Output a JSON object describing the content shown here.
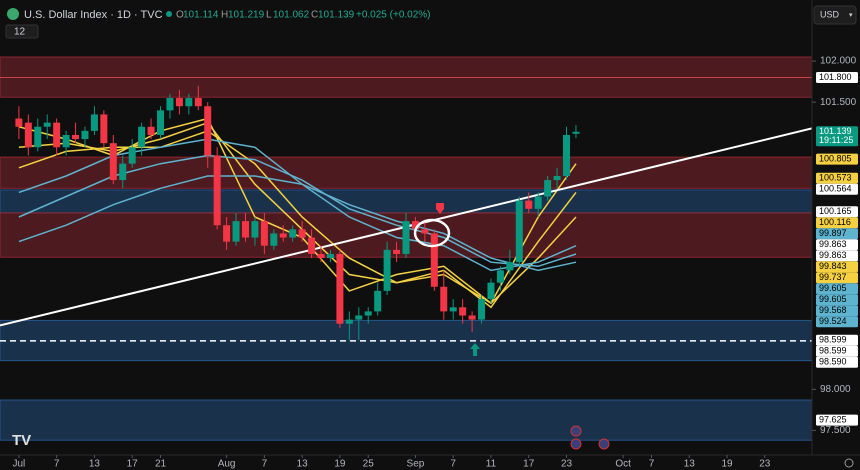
{
  "header": {
    "title": "U.S. Dollar Index · 1D · TVC",
    "ohlc": [
      {
        "label": "O",
        "value": "101.114"
      },
      {
        "label": "H",
        "value": "101.219"
      },
      {
        "label": "L",
        "value": "101.062"
      },
      {
        "label": "C",
        "value": "101.139"
      }
    ],
    "change": "+0.025 (+0.02%)",
    "currency": "USD",
    "indicators": "12"
  },
  "chart_data": {
    "type": "candlestick",
    "x": [
      0,
      1,
      2,
      3,
      4,
      5,
      6,
      7,
      8,
      9,
      10,
      11,
      12,
      13,
      14,
      15,
      16,
      17,
      18,
      19,
      20,
      21,
      22,
      23,
      24,
      25,
      26,
      27,
      28,
      29,
      30,
      31,
      32,
      33,
      34,
      35,
      36,
      37,
      38,
      39,
      40,
      41,
      42,
      43,
      44,
      45,
      46,
      47,
      48,
      49,
      50,
      51,
      52,
      53,
      54,
      55,
      56,
      57,
      58,
      59
    ],
    "open": [
      101.3,
      101.25,
      100.95,
      101.2,
      101.25,
      100.95,
      101.1,
      101.05,
      101.15,
      101.35,
      101.0,
      100.55,
      100.75,
      100.95,
      101.2,
      101.1,
      101.4,
      101.55,
      101.45,
      101.55,
      101.45,
      100.85,
      100.0,
      99.8,
      100.05,
      99.85,
      100.05,
      99.75,
      99.9,
      99.85,
      99.95,
      99.85,
      99.65,
      99.6,
      99.65,
      98.8,
      98.85,
      98.9,
      98.95,
      99.2,
      99.7,
      99.65,
      100.05,
      99.95,
      99.9,
      99.25,
      98.95,
      99.0,
      98.9,
      98.85,
      99.1,
      99.3,
      99.45,
      99.55,
      100.3,
      100.2,
      100.35,
      100.55,
      100.6,
      101.114
    ],
    "high": [
      101.45,
      101.35,
      101.3,
      101.35,
      101.3,
      101.15,
      101.25,
      101.2,
      101.45,
      101.4,
      101.1,
      100.85,
      101.05,
      101.25,
      101.3,
      101.45,
      101.6,
      101.65,
      101.6,
      101.7,
      101.5,
      100.95,
      100.1,
      100.15,
      100.15,
      100.1,
      100.15,
      99.95,
      100.0,
      100.0,
      100.05,
      99.95,
      99.75,
      99.7,
      99.7,
      98.95,
      99.0,
      99.0,
      99.3,
      99.8,
      99.8,
      100.15,
      100.1,
      100.05,
      99.95,
      99.45,
      99.1,
      99.1,
      98.95,
      99.15,
      99.35,
      99.5,
      99.7,
      100.35,
      100.4,
      100.4,
      100.6,
      100.7,
      101.2,
      101.219
    ],
    "low": [
      101.05,
      100.85,
      100.9,
      101.05,
      100.85,
      100.85,
      101.0,
      100.95,
      101.1,
      100.95,
      100.5,
      100.45,
      100.7,
      100.85,
      101.05,
      101.05,
      101.3,
      101.35,
      101.35,
      101.4,
      100.7,
      99.95,
      99.7,
      99.75,
      99.8,
      99.75,
      99.65,
      99.7,
      99.8,
      99.8,
      99.8,
      99.6,
      99.55,
      99.55,
      98.75,
      98.6,
      98.6,
      98.8,
      98.9,
      99.15,
      99.55,
      99.6,
      99.85,
      99.8,
      99.2,
      98.85,
      98.85,
      98.8,
      98.7,
      98.8,
      99.05,
      99.2,
      99.4,
      99.5,
      100.15,
      100.1,
      100.3,
      100.45,
      100.55,
      101.062
    ],
    "close": [
      101.2,
      100.95,
      101.2,
      101.25,
      100.95,
      101.1,
      101.05,
      101.15,
      101.35,
      101.0,
      100.55,
      100.75,
      100.95,
      101.2,
      101.1,
      101.4,
      101.55,
      101.45,
      101.55,
      101.45,
      100.85,
      100.0,
      99.8,
      100.05,
      99.85,
      100.05,
      99.75,
      99.9,
      99.85,
      99.95,
      99.85,
      99.65,
      99.6,
      99.65,
      98.8,
      98.85,
      98.9,
      98.95,
      99.2,
      99.7,
      99.65,
      100.05,
      99.95,
      99.9,
      99.25,
      98.95,
      99.0,
      98.9,
      98.85,
      99.1,
      99.3,
      99.45,
      99.55,
      100.3,
      100.2,
      100.35,
      100.55,
      100.6,
      101.1,
      101.139
    ],
    "up_color": "#089981",
    "down_color": "#f23645",
    "ma": [
      {
        "color": "#f5d142",
        "x": [
          0,
          5,
          10,
          15,
          20,
          25,
          30,
          35,
          40,
          45,
          50,
          55,
          59
        ],
        "values": [
          101.2,
          101.05,
          100.85,
          101.15,
          101.3,
          100.1,
          99.85,
          99.2,
          99.4,
          99.5,
          99.05,
          100.1,
          100.75
        ]
      },
      {
        "color": "#f5d142",
        "x": [
          0,
          5,
          10,
          15,
          20,
          25,
          30,
          35,
          40,
          45,
          50,
          55,
          59
        ],
        "values": [
          100.95,
          101.0,
          100.9,
          101.05,
          101.25,
          100.5,
          99.95,
          99.4,
          99.3,
          99.45,
          99.0,
          99.8,
          100.4
        ]
      },
      {
        "color": "#f5d142",
        "x": [
          0,
          5,
          10,
          15,
          20,
          25,
          30,
          35,
          40,
          45,
          50,
          55,
          59
        ],
        "values": [
          100.7,
          100.9,
          100.95,
          100.95,
          101.15,
          100.75,
          100.1,
          99.6,
          99.3,
          99.4,
          99.05,
          99.6,
          100.1
        ]
      },
      {
        "color": "#5eb3cf",
        "x": [
          0,
          5,
          10,
          15,
          20,
          25,
          30,
          35,
          40,
          45,
          50,
          55,
          59
        ],
        "values": [
          100.4,
          100.6,
          100.85,
          100.95,
          101.05,
          100.95,
          100.5,
          100.1,
          99.85,
          99.75,
          99.45,
          99.55,
          99.75
        ]
      },
      {
        "color": "#5eb3cf",
        "x": [
          0,
          5,
          10,
          15,
          20,
          25,
          30,
          35,
          40,
          45,
          50,
          55,
          59
        ],
        "values": [
          100.1,
          100.35,
          100.6,
          100.75,
          100.85,
          100.8,
          100.55,
          100.2,
          100.0,
          99.85,
          99.55,
          99.5,
          99.65
        ]
      },
      {
        "color": "#5eb3cf",
        "x": [
          0,
          5,
          10,
          15,
          20,
          25,
          30,
          35,
          40,
          45,
          50,
          55,
          59
        ],
        "values": [
          99.8,
          100.0,
          100.25,
          100.45,
          100.6,
          100.6,
          100.5,
          100.25,
          100.05,
          99.9,
          99.6,
          99.45,
          99.55
        ]
      }
    ],
    "zones": [
      {
        "from": 101.56,
        "to": 102.05,
        "color": "rgba(150,40,50,0.45)"
      },
      {
        "from": 100.45,
        "to": 100.83,
        "color": "rgba(150,40,50,0.45)"
      },
      {
        "from": 100.15,
        "to": 100.43,
        "color": "rgba(40,90,150,0.45)"
      },
      {
        "from": 99.61,
        "to": 100.15,
        "color": "rgba(150,40,50,0.45)"
      },
      {
        "from": 98.35,
        "to": 98.84,
        "color": "rgba(40,90,150,0.45)"
      },
      {
        "from": 97.38,
        "to": 97.87,
        "color": "rgba(40,90,150,0.45)"
      }
    ],
    "hlines": [
      {
        "value": 101.8,
        "color": "#c0444a",
        "dashed": false
      },
      {
        "value": 98.59,
        "color": "#ffffff",
        "dashed": true
      }
    ],
    "trendline": {
      "x": [
        -2,
        84
      ],
      "y": [
        98.78,
        101.18
      ],
      "color": "#ffffff"
    },
    "xlim": [
      -2,
      84
    ],
    "ylim": [
      97.2,
      102.44
    ],
    "xticks": [
      {
        "value": 0,
        "label": "Jul"
      },
      {
        "value": 4,
        "label": "7"
      },
      {
        "value": 8,
        "label": "13"
      },
      {
        "value": 12,
        "label": "17"
      },
      {
        "value": 15,
        "label": "21"
      },
      {
        "value": 22,
        "label": "Aug"
      },
      {
        "value": 26,
        "label": "7"
      },
      {
        "value": 30,
        "label": "13"
      },
      {
        "value": 34,
        "label": "19"
      },
      {
        "value": 37,
        "label": "25"
      },
      {
        "value": 42,
        "label": "Sep"
      },
      {
        "value": 46,
        "label": "7"
      },
      {
        "value": 50,
        "label": "11"
      },
      {
        "value": 54,
        "label": "17"
      },
      {
        "value": 58,
        "label": "23"
      },
      {
        "value": 64,
        "label": "Oct"
      },
      {
        "value": 67,
        "label": "7"
      },
      {
        "value": 71,
        "label": "13"
      },
      {
        "value": 75,
        "label": "19"
      },
      {
        "value": 79,
        "label": "23"
      }
    ],
    "yticks": [
      {
        "value": 102,
        "label": "102.000"
      },
      {
        "value": 101.5,
        "label": "101.500"
      },
      {
        "value": 98,
        "label": "98.000"
      },
      {
        "value": 97.5,
        "label": "97.500"
      }
    ],
    "price_labels": [
      {
        "value": 101.8,
        "label": "101.800",
        "color": "#ffffff"
      },
      {
        "value": 101.139,
        "label": "101.139",
        "color": "#089981",
        "countdown": "19:11:25"
      },
      {
        "value": 100.805,
        "label": "100.805",
        "color": "#f5d142"
      },
      {
        "value": 100.573,
        "label": "100.573",
        "color": "#f5d142"
      },
      {
        "value": 100.564,
        "label": "100.564",
        "color": "#ffffff"
      },
      {
        "value": 100.165,
        "label": "100.165",
        "color": "#ffffff"
      },
      {
        "value": 100.116,
        "label": "100.116",
        "color": "#f5d142"
      },
      {
        "value": 99.897,
        "label": "99.897",
        "color": "#5eb3cf"
      },
      {
        "value": 99.863,
        "label": "99.863",
        "color": "#ffffff"
      },
      {
        "value": 99.863,
        "label": "99.863",
        "color": "#ffffff"
      },
      {
        "value": 99.843,
        "label": "99.843",
        "color": "#f5d142"
      },
      {
        "value": 99.737,
        "label": "99.737",
        "color": "#f5d142"
      },
      {
        "value": 99.605,
        "label": "99.605",
        "color": "#5eb3cf"
      },
      {
        "value": 99.605,
        "label": "99.605",
        "color": "#5eb3cf"
      },
      {
        "value": 99.568,
        "label": "99.568",
        "color": "#5eb3cf"
      },
      {
        "value": 99.524,
        "label": "99.524",
        "color": "#5eb3cf"
      },
      {
        "value": 98.599,
        "label": "98.599",
        "color": "#ffffff"
      },
      {
        "value": 98.599,
        "label": "98.599",
        "color": "#ffffff"
      },
      {
        "value": 98.59,
        "label": "98.590",
        "color": "#ffffff"
      },
      {
        "value": 97.625,
        "label": "97.625",
        "color": "#ffffff"
      }
    ]
  }
}
